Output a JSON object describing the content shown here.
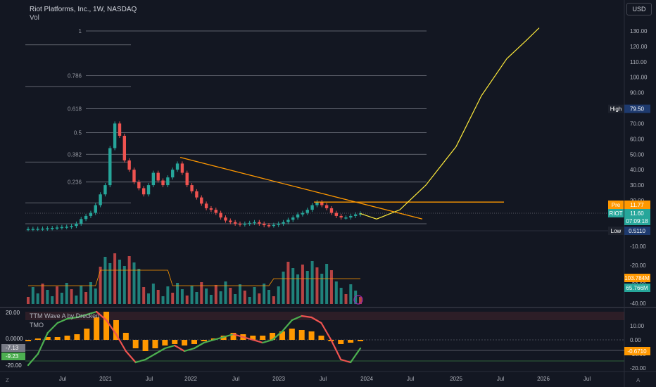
{
  "header": {
    "title": "Riot Platforms, Inc., 1W, NASDAQ",
    "volume_label": "Vol",
    "currency": "USD"
  },
  "indicator": {
    "name": "TTM Wave A by Drecken",
    "sub": "TMO"
  },
  "colors": {
    "bg": "#131722",
    "up": "#26a69a",
    "down": "#ef5350",
    "fib": "#787b86",
    "trend": "#ff9800",
    "projection": "#ffeb3b",
    "wave_up": "#4caf50",
    "wave_down": "#ef5350",
    "hist": "#ff9800"
  },
  "chart_data": [
    {
      "type": "candlestick",
      "x_ticks": [
        "Jul",
        "2021",
        "Jul",
        "2022",
        "Jul",
        "2023",
        "Jul",
        "2024",
        "Jul",
        "2025",
        "Jul",
        "2026",
        "Jul"
      ],
      "y_ticks": [
        130,
        120,
        110,
        100,
        90,
        80,
        70,
        60,
        50,
        40,
        30,
        20,
        -10,
        -20,
        -30,
        -40
      ],
      "y_tick_labels": [
        "130.00",
        "120.00",
        "110.00",
        "100.00",
        "90.00",
        "80.00",
        "70.00",
        "60.00",
        "50.00",
        "40.00",
        "30.00",
        "20.00",
        "-10.00",
        "-20.00",
        "-30.00",
        "-40.00"
      ],
      "fib_levels": [
        {
          "label": "1",
          "value": 130
        },
        {
          "label": "0.786",
          "value": 101
        },
        {
          "label": "0.618",
          "value": 79.5
        },
        {
          "label": "0.5",
          "value": 64
        },
        {
          "label": "0.382",
          "value": 50
        },
        {
          "label": "0.236",
          "value": 32
        }
      ],
      "fib_minor": [
        121,
        94,
        45,
        18.5
      ],
      "price_series": [
        1.5,
        1.6,
        1.7,
        1.8,
        2.0,
        2.2,
        2.5,
        2.8,
        3.0,
        3.5,
        5,
        8,
        10,
        12,
        17,
        24,
        30,
        54,
        70,
        62,
        46,
        40,
        32,
        28,
        24,
        30,
        38,
        33,
        30,
        35,
        40,
        44,
        38,
        30,
        26,
        22,
        18,
        15,
        14,
        12,
        9,
        7,
        6,
        5,
        4.5,
        5,
        5.5,
        6,
        5,
        4,
        3.8,
        4.2,
        5,
        6,
        7.5,
        9,
        11,
        12,
        14,
        17,
        19,
        17,
        15,
        12,
        10,
        9,
        9,
        10,
        11,
        11.6
      ],
      "trendline": {
        "from": 48,
        "to": 8
      },
      "horizontal_line": 19,
      "projection": [
        11.6,
        8,
        14,
        30,
        55,
        88,
        112,
        124,
        132
      ],
      "annotations": [
        {
          "label": "High",
          "value": "79.50"
        },
        {
          "label": "Pre",
          "value": "11.77"
        },
        {
          "label": "RIOT",
          "value": "11.60",
          "extra": "07:09:18"
        },
        {
          "label": "Low",
          "value": "0.5110"
        }
      ],
      "volume_tags": [
        "103.784M",
        "65.766M"
      ]
    },
    {
      "type": "area",
      "name": "TTM Wave A",
      "y_ticks": [
        10,
        0,
        -10,
        -20
      ],
      "y_tick_labels": [
        "10.00",
        "0.00",
        "-10.00",
        "-20.00"
      ],
      "left_labels": [
        "20.00",
        "0.0000",
        "-7.13",
        "-9.23",
        "-20.00"
      ],
      "right_tag": "-0.6710",
      "wave": [
        -18,
        -10,
        5,
        12,
        15,
        16,
        18,
        20,
        14,
        4,
        -8,
        -16,
        -14,
        -10,
        -6,
        -4,
        -8,
        -6,
        -2,
        0,
        2,
        4,
        2,
        0,
        -2,
        0,
        6,
        14,
        17,
        16,
        12,
        0,
        -14,
        -16,
        -6
      ],
      "histogram": [
        -1,
        1,
        2,
        2,
        3,
        4,
        8,
        16,
        20,
        14,
        5,
        -6,
        -8,
        -6,
        -4,
        -3,
        -4,
        -3,
        -1,
        1,
        3,
        5,
        4,
        3,
        3,
        5,
        6,
        8,
        7,
        6,
        3,
        -1,
        -3,
        -2,
        -1
      ]
    }
  ]
}
